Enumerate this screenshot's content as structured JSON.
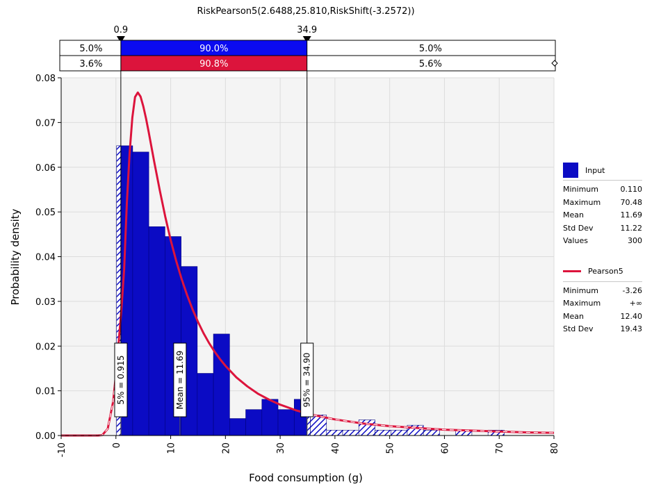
{
  "chart_data": {
    "type": "bar",
    "title": "RiskPearson5(2.6488,25.810,RiskShift(-3.2572))",
    "xlabel": "Food consumption (g)",
    "ylabel": "Probability density",
    "xlim": [
      -10,
      80
    ],
    "ylim": [
      0,
      0.08
    ],
    "x_ticks": [
      "-10",
      "0",
      "10",
      "20",
      "30",
      "40",
      "50",
      "60",
      "70",
      "80"
    ],
    "y_ticks": [
      "0.00",
      "0.01",
      "0.02",
      "0.03",
      "0.04",
      "0.05",
      "0.06",
      "0.07",
      "0.08"
    ],
    "grid": true,
    "legend_position": "right",
    "histogram": {
      "name": "Input",
      "color": "#0b0bc4",
      "bin_width": 2.95,
      "bins": [
        {
          "x0": 0.11,
          "value": 0.0648
        },
        {
          "x0": 3.06,
          "value": 0.0634
        },
        {
          "x0": 6.01,
          "value": 0.0467
        },
        {
          "x0": 8.96,
          "value": 0.0445
        },
        {
          "x0": 11.91,
          "value": 0.0378
        },
        {
          "x0": 14.86,
          "value": 0.0139
        },
        {
          "x0": 17.81,
          "value": 0.0227
        },
        {
          "x0": 20.76,
          "value": 0.0038
        },
        {
          "x0": 23.71,
          "value": 0.0058
        },
        {
          "x0": 26.66,
          "value": 0.0081
        },
        {
          "x0": 29.61,
          "value": 0.0058
        },
        {
          "x0": 32.56,
          "value": 0.0081
        },
        {
          "x0": 35.51,
          "value": 0.0046
        },
        {
          "x0": 38.46,
          "value": 0.0012
        },
        {
          "x0": 41.41,
          "value": 0.0012
        },
        {
          "x0": 44.36,
          "value": 0.0035
        },
        {
          "x0": 47.31,
          "value": 0.0012
        },
        {
          "x0": 50.26,
          "value": 0.0012
        },
        {
          "x0": 53.21,
          "value": 0.0023
        },
        {
          "x0": 56.16,
          "value": 0.0012
        },
        {
          "x0": 59.11,
          "value": 0.0
        },
        {
          "x0": 62.06,
          "value": 0.0012
        },
        {
          "x0": 65.01,
          "value": 0.0
        },
        {
          "x0": 67.96,
          "value": 0.0012
        }
      ]
    },
    "curve": {
      "name": "Pearson5",
      "color": "#dc143c",
      "x": [
        -10,
        -3.26,
        -2.5,
        -1.5,
        -0.5,
        0,
        0.5,
        1,
        1.5,
        2,
        2.5,
        3,
        3.5,
        4,
        4.5,
        5,
        5.5,
        6,
        7,
        8,
        9,
        10,
        11,
        12,
        13,
        14,
        15,
        16,
        17,
        18,
        19,
        20,
        22,
        24,
        26,
        28,
        30,
        33,
        36,
        40,
        45,
        50,
        55,
        60,
        65,
        70,
        75,
        80
      ],
      "y": [
        0,
        0,
        0.0001,
        0.0015,
        0.0076,
        0.0137,
        0.0208,
        0.0283,
        0.0371,
        0.052,
        0.0632,
        0.0711,
        0.0757,
        0.0767,
        0.0758,
        0.0736,
        0.0709,
        0.0678,
        0.0612,
        0.0549,
        0.049,
        0.0437,
        0.0391,
        0.035,
        0.0314,
        0.0282,
        0.0254,
        0.0229,
        0.0207,
        0.0188,
        0.0171,
        0.0156,
        0.013,
        0.011,
        0.0093,
        0.008,
        0.0069,
        0.0056,
        0.0046,
        0.0036,
        0.0027,
        0.0021,
        0.0017,
        0.0013,
        0.0011,
        0.0009,
        0.0007,
        0.0006
      ]
    },
    "delimiters": {
      "left": {
        "x": 0.9,
        "label": "0.9"
      },
      "right": {
        "x": 34.9,
        "label": "34.9"
      }
    },
    "band_rows": [
      {
        "left": "5.0%",
        "middle": "90.0%",
        "right": "5.0%",
        "color": "#0b0bf0"
      },
      {
        "left": "3.6%",
        "middle": "90.8%",
        "right": "5.6%",
        "color": "#dc143c"
      }
    ],
    "markers": [
      {
        "x": 0.915,
        "label": "5% = 0.915"
      },
      {
        "x": 11.69,
        "label": "Mean = 11.69"
      },
      {
        "x": 34.9,
        "label": "95% = 34.90"
      }
    ]
  },
  "legend": {
    "input": {
      "title": "Input",
      "color": "#0b0bc4",
      "stats": [
        {
          "label": "Minimum",
          "value": "0.110"
        },
        {
          "label": "Maximum",
          "value": "70.48"
        },
        {
          "label": "Mean",
          "value": "11.69"
        },
        {
          "label": "Std Dev",
          "value": "11.22"
        },
        {
          "label": "Values",
          "value": "300"
        }
      ]
    },
    "fit": {
      "title": "Pearson5",
      "color": "#dc143c",
      "stats": [
        {
          "label": "Minimum",
          "value": "-3.26"
        },
        {
          "label": "Maximum",
          "value": "+∞"
        },
        {
          "label": "Mean",
          "value": "12.40"
        },
        {
          "label": "Std Dev",
          "value": "19.43"
        }
      ]
    }
  }
}
